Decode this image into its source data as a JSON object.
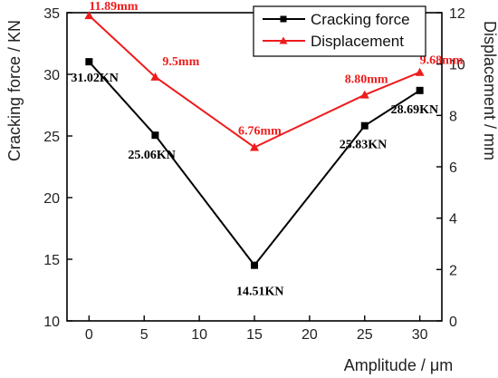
{
  "chart_data": {
    "type": "line",
    "xlabel": "Amplitude / μm",
    "ylabel_left": "Cracking force / KN",
    "ylabel_right": "Displacement / mm",
    "x_ticks": [
      "0",
      "5",
      "10",
      "15",
      "20",
      "25",
      "30"
    ],
    "xlim": [
      -2,
      32
    ],
    "ylim_left": [
      10,
      35
    ],
    "y_ticks_left": [
      "10",
      "15",
      "20",
      "25",
      "30",
      "35"
    ],
    "ylim_right": [
      0,
      12
    ],
    "y_ticks_right": [
      "0",
      "2",
      "4",
      "6",
      "8",
      "10",
      "12"
    ],
    "legend_position": "top-right",
    "series": [
      {
        "name": "Cracking force",
        "axis": "left",
        "color": "#000000",
        "marker": "square",
        "x": [
          0,
          6,
          15,
          25,
          30
        ],
        "y": [
          31.02,
          25.06,
          14.51,
          25.83,
          28.69
        ],
        "labels": [
          "31.02KN",
          "25.06KN",
          "14.51KN",
          "25.83KN",
          "28.69KN"
        ]
      },
      {
        "name": "Displacement",
        "axis": "right",
        "color": "#ee1c1c",
        "marker": "triangle",
        "x": [
          0,
          6,
          15,
          25,
          30
        ],
        "y": [
          11.89,
          9.5,
          6.76,
          8.8,
          9.68
        ],
        "labels": [
          "11.89mm",
          "9.5mm",
          "6.76mm",
          "8.80mm",
          "9.68mm"
        ]
      }
    ]
  }
}
